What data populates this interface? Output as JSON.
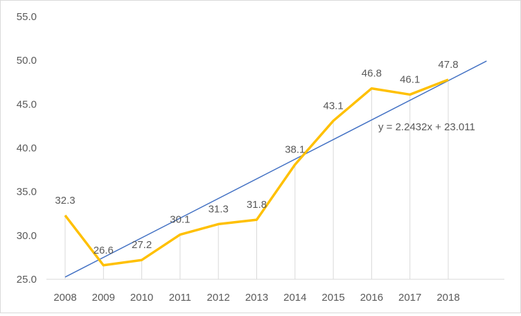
{
  "chart_data": {
    "type": "line",
    "title": "",
    "xlabel": "",
    "ylabel": "",
    "categories": [
      "2008",
      "2009",
      "2010",
      "2011",
      "2012",
      "2013",
      "2014",
      "2015",
      "2016",
      "2017",
      "2018"
    ],
    "series": [
      {
        "values": [
          32.3,
          26.6,
          27.2,
          30.1,
          31.3,
          31.8,
          38.1,
          43.1,
          46.8,
          46.1,
          47.8
        ],
        "color": "#ffc000"
      }
    ],
    "trendline": {
      "slope": 2.2432,
      "intercept": 23.011,
      "label": "y = 2.2432x + 23.011",
      "color": "#4472c4"
    },
    "ylim": [
      25.0,
      55.0
    ],
    "yticks": [
      "25.0",
      "30.0",
      "35.0",
      "40.0",
      "45.0",
      "50.0",
      "55.0"
    ],
    "grid": "vertical drop lines",
    "legend": "none"
  }
}
